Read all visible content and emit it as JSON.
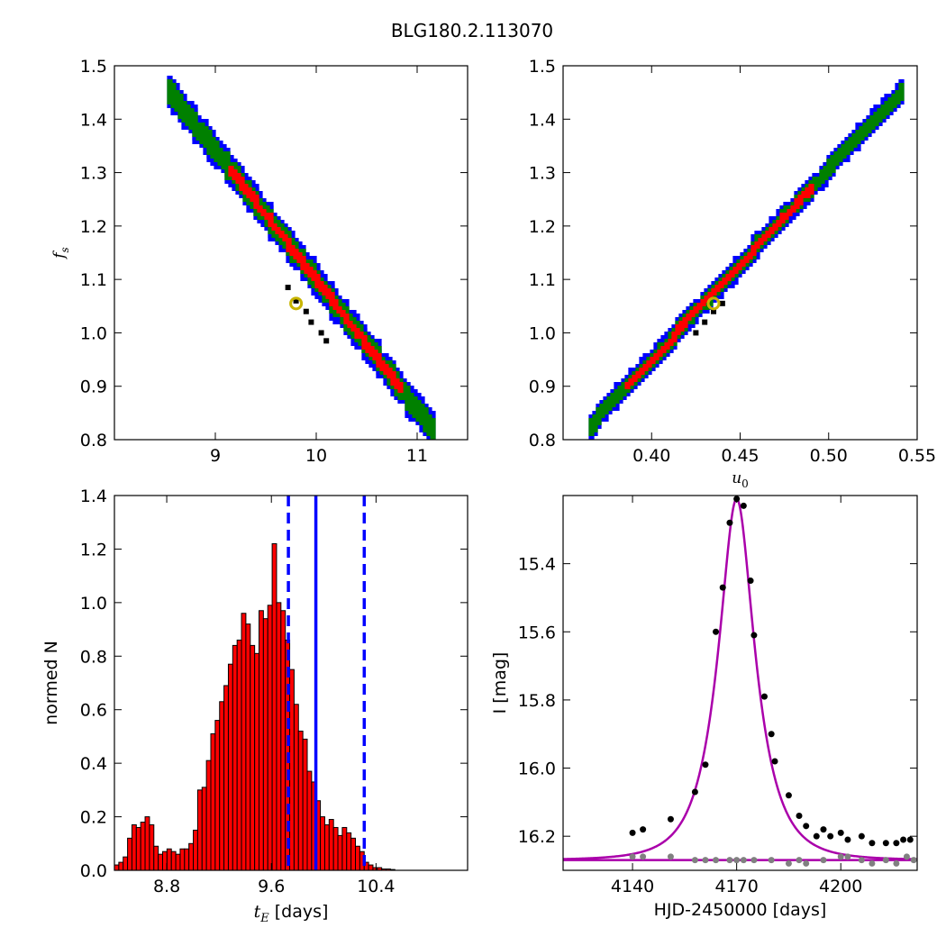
{
  "title": "BLG180.2.113070",
  "colors": {
    "outer": "#0000ff",
    "mid": "#008000",
    "inner": "#ff0000",
    "best": "#000000",
    "marker": "#c8b400",
    "hist_fill": "#ff0000",
    "hist_edge": "#000000",
    "vline": "#0000ff",
    "model": "#aa00aa",
    "data_primary": "#000000",
    "data_secondary": "#808080"
  },
  "chart_data": [
    {
      "id": "tE_fs",
      "type": "heatmap",
      "xlabel": "",
      "ylabel": "f_s",
      "xlim": [
        8.0,
        11.5
      ],
      "ylim": [
        0.8,
        1.5
      ],
      "xticks": [
        "9",
        "10",
        "11"
      ],
      "xtick_values": [
        9,
        10,
        11
      ],
      "yticks": [
        "0.8",
        "0.9",
        "1.0",
        "1.1",
        "1.2",
        "1.3",
        "1.4",
        "1.5"
      ],
      "ytick_values": [
        0.8,
        0.9,
        1.0,
        1.1,
        1.2,
        1.3,
        1.4,
        1.5
      ],
      "band": {
        "x_start": 8.55,
        "x_end": 11.15,
        "y_start": 1.45,
        "y_end": 0.82
      },
      "confidence_half_widths_y": {
        "outer": 0.03,
        "mid": 0.02,
        "inner": 0.009
      },
      "inner_x_range": [
        9.15,
        10.85
      ],
      "best_fit_points": [
        [
          9.72,
          1.085
        ],
        [
          9.8,
          1.06
        ],
        [
          9.9,
          1.04
        ],
        [
          9.95,
          1.02
        ],
        [
          10.05,
          1.0
        ],
        [
          10.1,
          0.985
        ]
      ],
      "marker": {
        "x": 9.8,
        "y": 1.055
      }
    },
    {
      "id": "u0_fs",
      "type": "heatmap",
      "xlabel": "u_0",
      "ylabel": "",
      "xlim": [
        0.35,
        0.55
      ],
      "ylim": [
        0.8,
        1.5
      ],
      "xticks": [
        "0.40",
        "0.45",
        "0.50",
        "0.55"
      ],
      "xtick_values": [
        0.4,
        0.45,
        0.5,
        0.55
      ],
      "yticks": [
        "0.8",
        "0.9",
        "1.0",
        "1.1",
        "1.2",
        "1.3",
        "1.4",
        "1.5"
      ],
      "ytick_values": [
        0.8,
        0.9,
        1.0,
        1.1,
        1.2,
        1.3,
        1.4,
        1.5
      ],
      "band": {
        "x_start": 0.365,
        "x_end": 0.54,
        "y_start": 0.825,
        "y_end": 1.45
      },
      "confidence_half_widths_y": {
        "outer": 0.022,
        "mid": 0.014,
        "inner": 0.007
      },
      "inner_x_range": [
        0.385,
        0.49
      ],
      "best_fit_points": [
        [
          0.425,
          1.0
        ],
        [
          0.43,
          1.02
        ],
        [
          0.435,
          1.04
        ],
        [
          0.44,
          1.055
        ]
      ],
      "marker": {
        "x": 0.435,
        "y": 1.055
      }
    },
    {
      "id": "tE_hist",
      "type": "bar",
      "xlabel": "t_E [days]",
      "ylabel": "normed N",
      "xlim": [
        8.4,
        11.1
      ],
      "ylim": [
        0.0,
        1.4
      ],
      "xticks": [
        "8.8",
        "9.6",
        "10.4"
      ],
      "xtick_values": [
        8.8,
        9.6,
        10.4
      ],
      "yticks": [
        "0.0",
        "0.2",
        "0.4",
        "0.6",
        "0.8",
        "1.0",
        "1.2",
        "1.4"
      ],
      "ytick_values": [
        0.0,
        0.2,
        0.4,
        0.6,
        0.8,
        1.0,
        1.2,
        1.4
      ],
      "bin_start": 8.4,
      "bin_width": 0.0335,
      "values": [
        0.02,
        0.03,
        0.05,
        0.12,
        0.17,
        0.16,
        0.18,
        0.2,
        0.17,
        0.09,
        0.06,
        0.07,
        0.08,
        0.07,
        0.06,
        0.08,
        0.08,
        0.1,
        0.15,
        0.3,
        0.31,
        0.41,
        0.51,
        0.56,
        0.63,
        0.69,
        0.77,
        0.84,
        0.86,
        0.96,
        0.92,
        0.84,
        0.81,
        0.97,
        0.94,
        0.99,
        1.22,
        1.0,
        0.97,
        0.86,
        0.75,
        0.62,
        0.52,
        0.49,
        0.37,
        0.33,
        0.26,
        0.2,
        0.17,
        0.19,
        0.16,
        0.13,
        0.16,
        0.14,
        0.12,
        0.09,
        0.07,
        0.03,
        0.02,
        0.01,
        0.01,
        0.005,
        0.005,
        0.003
      ],
      "vlines": [
        {
          "x": 9.73,
          "style": "dashed"
        },
        {
          "x": 9.94,
          "style": "solid"
        },
        {
          "x": 10.31,
          "style": "dashed"
        }
      ]
    },
    {
      "id": "lightcurve",
      "type": "scatter",
      "xlabel": "HJD-2450000 [days]",
      "ylabel": "I [mag]",
      "xlim": [
        4120,
        4222
      ],
      "ylim": [
        16.3,
        15.2
      ],
      "y_inverted": true,
      "xticks": [
        "4140",
        "4170",
        "4200"
      ],
      "xtick_values": [
        4140,
        4170,
        4200
      ],
      "yticks": [
        "15.4",
        "15.6",
        "15.8",
        "16.0",
        "16.2"
      ],
      "ytick_values": [
        15.4,
        15.6,
        15.8,
        16.0,
        16.2
      ],
      "model": {
        "t0": 4170.0,
        "tE": 9.8,
        "u0": 0.435,
        "base_mag": 16.27
      },
      "residual_baseline_mag": 16.27,
      "series": [
        {
          "kind": "data",
          "color_key": "data_primary",
          "points": [
            [
              4140,
              16.19
            ],
            [
              4143,
              16.18
            ],
            [
              4151,
              16.15
            ],
            [
              4158,
              16.07
            ],
            [
              4161,
              15.99
            ],
            [
              4164,
              15.6
            ],
            [
              4166,
              15.47
            ],
            [
              4168,
              15.28
            ],
            [
              4170,
              15.21
            ],
            [
              4172,
              15.23
            ],
            [
              4174,
              15.45
            ],
            [
              4175,
              15.61
            ],
            [
              4178,
              15.79
            ],
            [
              4180,
              15.9
            ],
            [
              4181,
              15.98
            ],
            [
              4185,
              16.08
            ],
            [
              4188,
              16.14
            ],
            [
              4190,
              16.17
            ],
            [
              4193,
              16.2
            ],
            [
              4195,
              16.18
            ],
            [
              4197,
              16.2
            ],
            [
              4200,
              16.19
            ],
            [
              4202,
              16.21
            ],
            [
              4206,
              16.2
            ],
            [
              4209,
              16.22
            ],
            [
              4213,
              16.22
            ],
            [
              4216,
              16.22
            ],
            [
              4218,
              16.21
            ],
            [
              4220,
              16.21
            ]
          ]
        },
        {
          "kind": "residual",
          "color_key": "data_secondary",
          "points": [
            [
              4140,
              16.26
            ],
            [
              4143,
              16.26
            ],
            [
              4151,
              16.26
            ],
            [
              4158,
              16.27
            ],
            [
              4161,
              16.27
            ],
            [
              4164,
              16.27
            ],
            [
              4168,
              16.27
            ],
            [
              4170,
              16.27
            ],
            [
              4172,
              16.27
            ],
            [
              4175,
              16.27
            ],
            [
              4180,
              16.27
            ],
            [
              4185,
              16.28
            ],
            [
              4188,
              16.27
            ],
            [
              4190,
              16.28
            ],
            [
              4195,
              16.27
            ],
            [
              4200,
              16.26
            ],
            [
              4202,
              16.26
            ],
            [
              4206,
              16.27
            ],
            [
              4209,
              16.28
            ],
            [
              4213,
              16.27
            ],
            [
              4216,
              16.28
            ],
            [
              4219,
              16.26
            ],
            [
              4221,
              16.27
            ]
          ]
        }
      ]
    }
  ]
}
